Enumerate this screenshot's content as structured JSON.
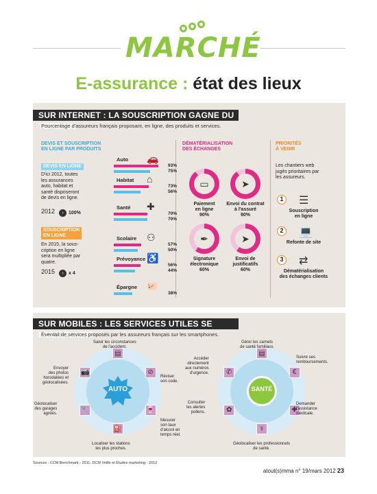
{
  "header": {
    "section": "MARCHÉ",
    "title_part1": "E-assurance :",
    "title_part2": "état des lieux"
  },
  "internet": {
    "band": "SUR INTERNET : LA SOUSCRIPTION GAGNE DU TERRAIN",
    "subtitle": "Pourcentage d'assureurs français proposant, en ligne, des produits et services.",
    "col1_title_l1": "DEVIS ET SOUSCRIPTION",
    "col1_title_l2": "EN LIGNE PAR PRODUITS",
    "devis_tag": "DEVIS EN LIGNE",
    "devis_text": [
      "D'ici 2012, toutes",
      "les assurances",
      "auto, habitat et",
      "santé disposeront",
      "de devis en ligne."
    ],
    "devis_year": "2012",
    "devis_value": "100%",
    "souscription_tag_l1": "SOUSCRIPTION",
    "souscription_tag_l2": "EN LIGNE",
    "souscription_text": [
      "En 2015, la sous-",
      "cription en ligne",
      "sera multipliée par",
      "quatre."
    ],
    "souscription_year": "2015",
    "souscription_value": "x 4",
    "products": [
      {
        "name": "Auto",
        "icon": "car-icon",
        "glyph": "🚗",
        "devis": 93,
        "devis_label": "93%",
        "sous": 75,
        "sous_label": "75%"
      },
      {
        "name": "Habitat",
        "icon": "house-icon",
        "glyph": "⌂",
        "devis": 73,
        "devis_label": "73%",
        "sous": 56,
        "sous_label": "56%"
      },
      {
        "name": "Santé",
        "icon": "medical-kit-icon",
        "glyph": "✚",
        "devis": 70,
        "devis_label": "70%",
        "sous": 70,
        "sous_label": "70%"
      },
      {
        "name": "Scolaire",
        "icon": "children-icon",
        "glyph": "⚇",
        "devis": 57,
        "devis_label": "57%",
        "sous": 50,
        "sous_label": "50%"
      },
      {
        "name": "Prévoyance",
        "icon": "wheelchair-icon",
        "glyph": "♿",
        "devis": 56,
        "devis_label": "56%",
        "sous": 44,
        "sous_label": "44%"
      },
      {
        "name": "Épargne",
        "icon": "piggy-bank-icon",
        "glyph": "🐖",
        "sous": 38,
        "sous_label": "38%"
      }
    ],
    "col2_title_l1": "DÉMATÉRIALISATION",
    "col2_title_l2": "DES ÉCHANGES",
    "demat": [
      {
        "label_l1": "Paiement",
        "label_l2": "en ligne",
        "pct_label": "90%",
        "pct": 90,
        "icon": "credit-card-icon",
        "glyph": "▭"
      },
      {
        "label_l1": "Envoi du contrat",
        "label_l2": "à l'assuré",
        "pct_label": "90%",
        "pct": 90,
        "icon": "paper-plane-icon",
        "glyph": "➤"
      },
      {
        "label_l1": "Signature",
        "label_l2": "électronique",
        "pct_label": "60%",
        "pct": 60,
        "icon": "pen-icon",
        "glyph": "✒"
      },
      {
        "label_l1": "Envoi de",
        "label_l2": "justificatifs",
        "pct_label": "60%",
        "pct": 60,
        "icon": "paper-plane-icon",
        "glyph": "➤"
      }
    ],
    "col3_title_l1": "PRIORITÉS",
    "col3_title_l2": "À VENIR",
    "prio_intro": [
      "Les chantiers web",
      "jugés prioritaires par",
      "les assureurs."
    ],
    "priorities": [
      {
        "num": "1",
        "label_l1": "Souscription",
        "label_l2": "en ligne",
        "icon": "form-icon",
        "glyph": "☰"
      },
      {
        "num": "2",
        "label_l1": "Refonte de site",
        "label_l2": "",
        "icon": "laptop-icon",
        "glyph": "💻"
      },
      {
        "num": "3",
        "label_l1": "Dématérialisation",
        "label_l2": "des échanges clients",
        "icon": "exchange-arrows-icon",
        "glyph": "⇄"
      }
    ]
  },
  "mobiles": {
    "band": "SUR MOBILES : LES SERVICES UTILES SE MULTIPLIENT",
    "subtitle": "Éventail de services proposés par les assureurs français sur les smartphones.",
    "auto_center": "AUTO",
    "sante_center": "SANTÉ",
    "auto_services": [
      {
        "text": [
          "Saisir les circonstances",
          "de l'accident."
        ],
        "icon": "document-icon",
        "glyph": "▤"
      },
      {
        "text": [
          "Réviser",
          "son code."
        ],
        "icon": "no-entry-icon",
        "glyph": "⊘"
      },
      {
        "text": [
          "Mesurer",
          "son taux",
          "d'alcool en",
          "temps réel."
        ],
        "icon": "wine-glass-icon",
        "glyph": "🍷"
      },
      {
        "text": [
          "Localiser les stations",
          "les plus proches."
        ],
        "icon": "fuel-pump-icon",
        "glyph": "⛽"
      },
      {
        "text": [
          "Géolocaliser",
          "des garages",
          "agréés."
        ],
        "icon": "wrench-icon",
        "glyph": "🔧"
      },
      {
        "text": [
          "Envoyer",
          "des photos",
          "horodatées et",
          "géolocalisées."
        ],
        "icon": "camera-icon",
        "glyph": "📷"
      }
    ],
    "sante_services": [
      {
        "text": [
          "Gérer les carnets",
          "de santé familiaux."
        ],
        "icon": "notebook-icon",
        "glyph": "▤"
      },
      {
        "text": [
          "Suivre ses",
          "remboursements."
        ],
        "icon": "euro-icon",
        "glyph": "€"
      },
      {
        "text": [
          "Demander",
          "l'assistance",
          "médicale."
        ],
        "icon": "medical-cross-icon",
        "glyph": "✚"
      },
      {
        "text": [
          "Géolocaliser les professionnels",
          "de santé."
        ],
        "icon": "caduceus-icon",
        "glyph": "⚕"
      },
      {
        "text": [
          "Consulter",
          "les alertes",
          "pollens."
        ],
        "icon": "flower-icon",
        "glyph": "✿"
      },
      {
        "text": [
          "Accéder",
          "directement",
          "aux numéros",
          "d'urgence."
        ],
        "icon": "phone-icon",
        "glyph": "✆"
      }
    ]
  },
  "footer": {
    "sources": "Sources : CCM Benchmark - 2011. DCM Veille et Études marketing - 2012",
    "folio": "atout(s)mma n° 19/mars 2012",
    "page": "23"
  },
  "colors": {
    "green": "#8dc63f",
    "pink": "#e02b86",
    "blue": "#56c0ea",
    "orange": "#f0892a",
    "purple": "#cf9acb",
    "panel": "#ebe7e0"
  }
}
